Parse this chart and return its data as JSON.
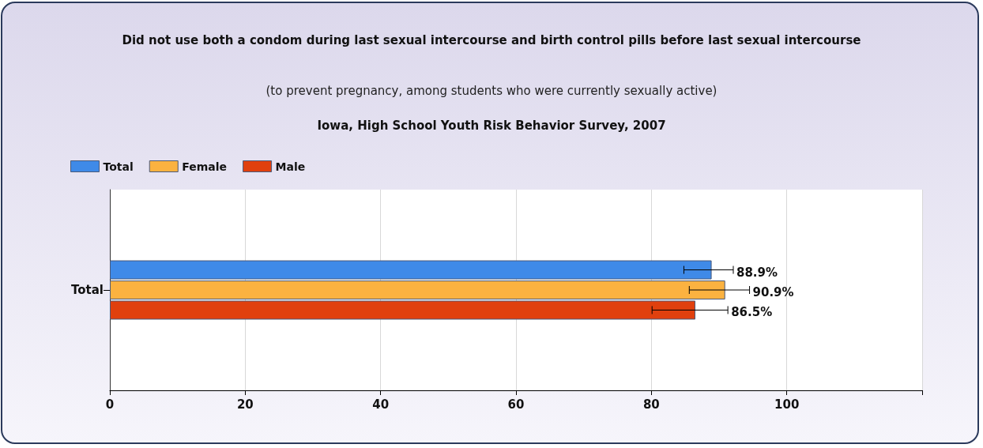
{
  "chart_data": {
    "type": "bar",
    "orientation": "horizontal",
    "title": "Did not use both a condom during last sexual intercourse and birth control pills before last sexual intercourse",
    "subtitle": "(to prevent pregnancy, among students who were currently sexually active)",
    "annotations": [
      "Iowa, High School Youth Risk Behavior Survey, 2007"
    ],
    "categories": [
      "Total"
    ],
    "series": [
      {
        "name": "Total",
        "color": "#3f8ae8",
        "values": [
          88.9
        ],
        "errors": [
          [
            84.8,
            92.1
          ]
        ],
        "value_labels": [
          "88.9%"
        ]
      },
      {
        "name": "Female",
        "color": "#fbb240",
        "values": [
          90.9
        ],
        "errors": [
          [
            85.6,
            94.5
          ]
        ],
        "value_labels": [
          "90.9%"
        ]
      },
      {
        "name": "Male",
        "color": "#e0400e",
        "values": [
          86.5
        ],
        "errors": [
          [
            80.1,
            91.3
          ]
        ],
        "value_labels": [
          "86.5%"
        ]
      }
    ],
    "xlim": [
      0,
      120
    ],
    "xticks": [
      0,
      20,
      40,
      60,
      80,
      100,
      {
        "value": 120,
        "label": null
      }
    ],
    "grid": "x",
    "legend": "top left"
  }
}
